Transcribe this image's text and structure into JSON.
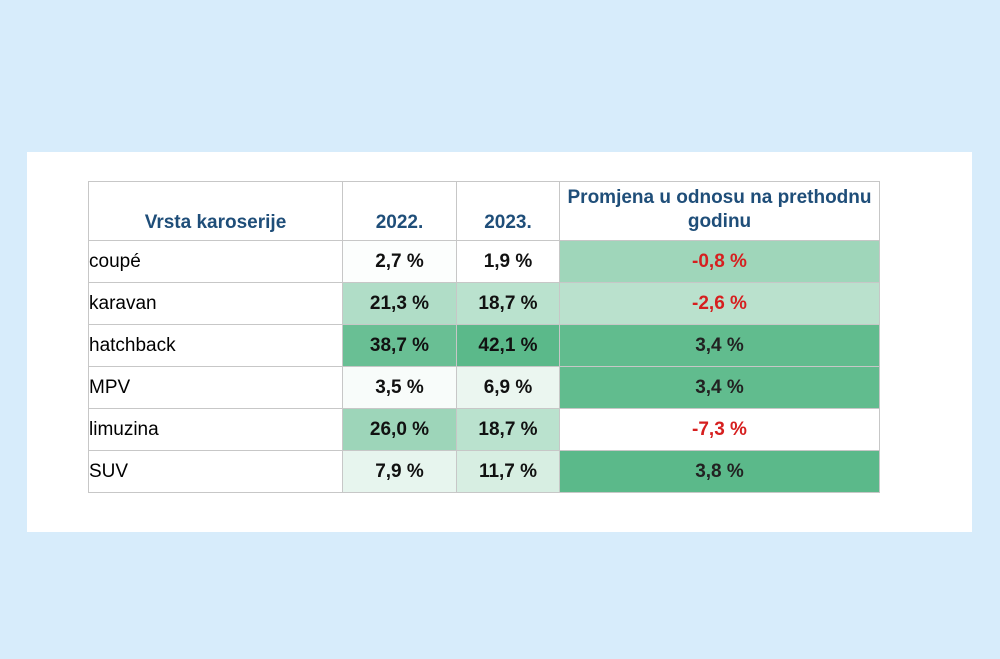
{
  "table": {
    "headers": {
      "type": "Vrsta karoserije",
      "y2022": "2022.",
      "y2023": "2023.",
      "change": "Promjena u odnosu na prethodnu godinu"
    },
    "rows": [
      {
        "type": "coupé",
        "y2022": "2,7 %",
        "y2023": "1,9 %",
        "change": "-0,8 %"
      },
      {
        "type": "karavan",
        "y2022": "21,3 %",
        "y2023": "18,7 %",
        "change": "-2,6 %"
      },
      {
        "type": "hatchback",
        "y2022": "38,7 %",
        "y2023": "42,1 %",
        "change": "3,4 %"
      },
      {
        "type": "MPV",
        "y2022": "3,5 %",
        "y2023": "6,9 %",
        "change": "3,4 %"
      },
      {
        "type": "limuzina",
        "y2022": "26,0 %",
        "y2023": "18,7 %",
        "change": "-7,3 %"
      },
      {
        "type": "SUV",
        "y2022": "7,9 %",
        "y2023": "11,7 %",
        "change": "3,8 %"
      }
    ],
    "colors": {
      "header_text": "#1f4e79",
      "negative_text": "#d61f1f",
      "scale_low": "#ffffff",
      "scale_high": "#5bb98a"
    }
  },
  "chart_data": {
    "type": "table",
    "columns": [
      "Vrsta karoserije",
      "2022.",
      "2023.",
      "Promjena u odnosu na prethodnu godinu"
    ],
    "categories": [
      "coupé",
      "karavan",
      "hatchback",
      "MPV",
      "limuzina",
      "SUV"
    ],
    "series": [
      {
        "name": "2022.",
        "values": [
          2.7,
          21.3,
          38.7,
          3.5,
          26.0,
          7.9
        ]
      },
      {
        "name": "2023.",
        "values": [
          1.9,
          18.7,
          42.1,
          6.9,
          18.7,
          11.7
        ]
      },
      {
        "name": "Promjena u odnosu na prethodnu godinu",
        "values": [
          -0.8,
          -2.6,
          3.4,
          3.4,
          -7.3,
          3.8
        ]
      }
    ],
    "unit": "%"
  }
}
